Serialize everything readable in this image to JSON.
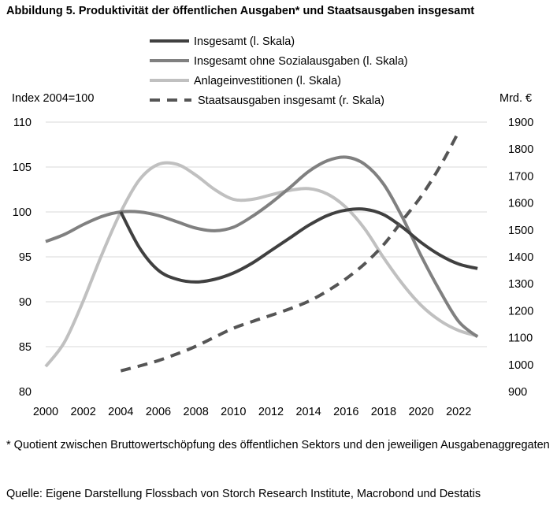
{
  "title": "Abbildung 5. Produktivität der öffentlichen Ausgaben* und Staatsausgaben insgesamt",
  "footnote": "* Quotient zwischen Bruttowertschöpfung des öffentlichen Sektors und den jeweiligen Ausgabenaggregaten",
  "source": "Quelle: Eigene Darstellung Flossbach von Storch Research Institute, Macrobond und Destatis",
  "chart_data": {
    "type": "line",
    "left_axis_label": "Index 2004=100",
    "right_axis_label": "Mrd. €",
    "left_ylim": [
      80,
      110
    ],
    "left_ticks": [
      80,
      85,
      90,
      95,
      100,
      105,
      110
    ],
    "right_ylim": [
      900,
      1900
    ],
    "right_ticks": [
      900,
      1000,
      1100,
      1200,
      1300,
      1400,
      1500,
      1600,
      1700,
      1800,
      1900
    ],
    "xlim": [
      2000,
      2023.5
    ],
    "x_ticks": [
      2000,
      2002,
      2004,
      2006,
      2008,
      2010,
      2012,
      2014,
      2016,
      2018,
      2020,
      2022
    ],
    "grid": "horizontal",
    "legend_position": "top",
    "series": [
      {
        "name": "Insgesamt (l. Skala)",
        "axis": "left",
        "color": "#404040",
        "dash": false,
        "x": [
          2004,
          2005,
          2006,
          2007,
          2008,
          2009,
          2010,
          2011,
          2012,
          2013,
          2014,
          2015,
          2016,
          2017,
          2018,
          2019,
          2020,
          2021,
          2022,
          2023
        ],
        "values": [
          100,
          96,
          93.5,
          92.5,
          92.2,
          92.5,
          93.2,
          94.3,
          95.7,
          97.1,
          98.5,
          99.6,
          100.2,
          100.3,
          99.7,
          98.3,
          96.6,
          95.2,
          94.2,
          93.7
        ]
      },
      {
        "name": "Insgesamt ohne Sozialausgaben (l. Skala)",
        "axis": "left",
        "color": "#808080",
        "dash": false,
        "x": [
          2000,
          2001,
          2002,
          2003,
          2004,
          2005,
          2006,
          2007,
          2008,
          2009,
          2010,
          2011,
          2012,
          2013,
          2014,
          2015,
          2016,
          2017,
          2018,
          2019,
          2020,
          2021,
          2022,
          2023
        ],
        "values": [
          96.7,
          97.5,
          98.6,
          99.5,
          100,
          100,
          99.6,
          98.9,
          98.2,
          97.9,
          98.3,
          99.5,
          101.0,
          102.7,
          104.5,
          105.7,
          106.1,
          105.3,
          103.1,
          99.4,
          95.1,
          91.2,
          87.8,
          86.1
        ]
      },
      {
        "name": "Anlageinvestitionen (l. Skala)",
        "axis": "left",
        "color": "#c0c0c0",
        "dash": false,
        "x": [
          2000,
          2001,
          2002,
          2003,
          2004,
          2005,
          2006,
          2007,
          2008,
          2009,
          2010,
          2011,
          2012,
          2013,
          2014,
          2015,
          2016,
          2017,
          2018,
          2019,
          2020,
          2021,
          2022,
          2023
        ],
        "values": [
          82.8,
          85.5,
          90.1,
          95.3,
          100,
          103.6,
          105.3,
          105.3,
          104.1,
          102.5,
          101.4,
          101.4,
          101.9,
          102.4,
          102.6,
          102.0,
          100.5,
          98.1,
          94.9,
          92.0,
          89.6,
          87.9,
          86.8,
          86.2
        ]
      },
      {
        "name": "Staatsausgaben insgesamt (r. Skala)",
        "axis": "right",
        "color": "#555555",
        "dash": true,
        "x": [
          2004,
          2005,
          2006,
          2007,
          2008,
          2009,
          2010,
          2011,
          2012,
          2013,
          2014,
          2015,
          2016,
          2017,
          2018,
          2019,
          2020,
          2021,
          2022
        ],
        "values": [
          977,
          995,
          1015,
          1040,
          1068,
          1102,
          1135,
          1160,
          1183,
          1207,
          1235,
          1273,
          1319,
          1375,
          1445,
          1535,
          1625,
          1735,
          1865
        ]
      }
    ]
  }
}
